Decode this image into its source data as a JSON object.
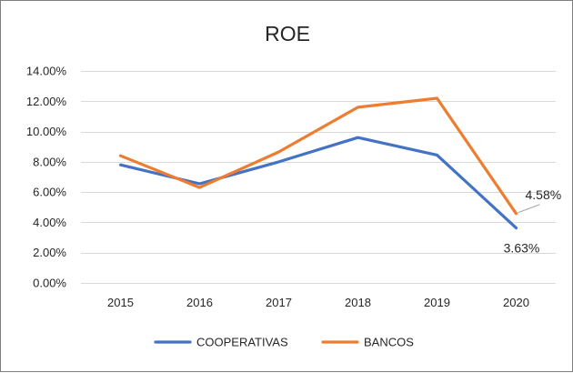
{
  "chart_data": {
    "type": "line",
    "title": "ROE",
    "categories": [
      "2015",
      "2016",
      "2017",
      "2018",
      "2019",
      "2020"
    ],
    "ylim": [
      0,
      14
    ],
    "yticks": [
      0,
      2,
      4,
      6,
      8,
      10,
      12,
      14
    ],
    "ytick_labels": [
      "0.00%",
      "2.00%",
      "4.00%",
      "6.00%",
      "8.00%",
      "10.00%",
      "12.00%",
      "14.00%"
    ],
    "grid": "horizontal",
    "legend_position": "bottom",
    "series": [
      {
        "name": "COOPERATIVAS",
        "color": "#4472C4",
        "values": [
          7.8,
          6.55,
          8.0,
          9.6,
          8.45,
          3.63
        ]
      },
      {
        "name": "BANCOS",
        "color": "#ED7D31",
        "values": [
          8.4,
          6.3,
          8.65,
          11.6,
          12.2,
          4.58
        ]
      }
    ],
    "data_labels": [
      {
        "series": "BANCOS",
        "category": "2020",
        "text": "4.58%"
      },
      {
        "series": "COOPERATIVAS",
        "category": "2020",
        "text": "3.63%"
      }
    ]
  }
}
